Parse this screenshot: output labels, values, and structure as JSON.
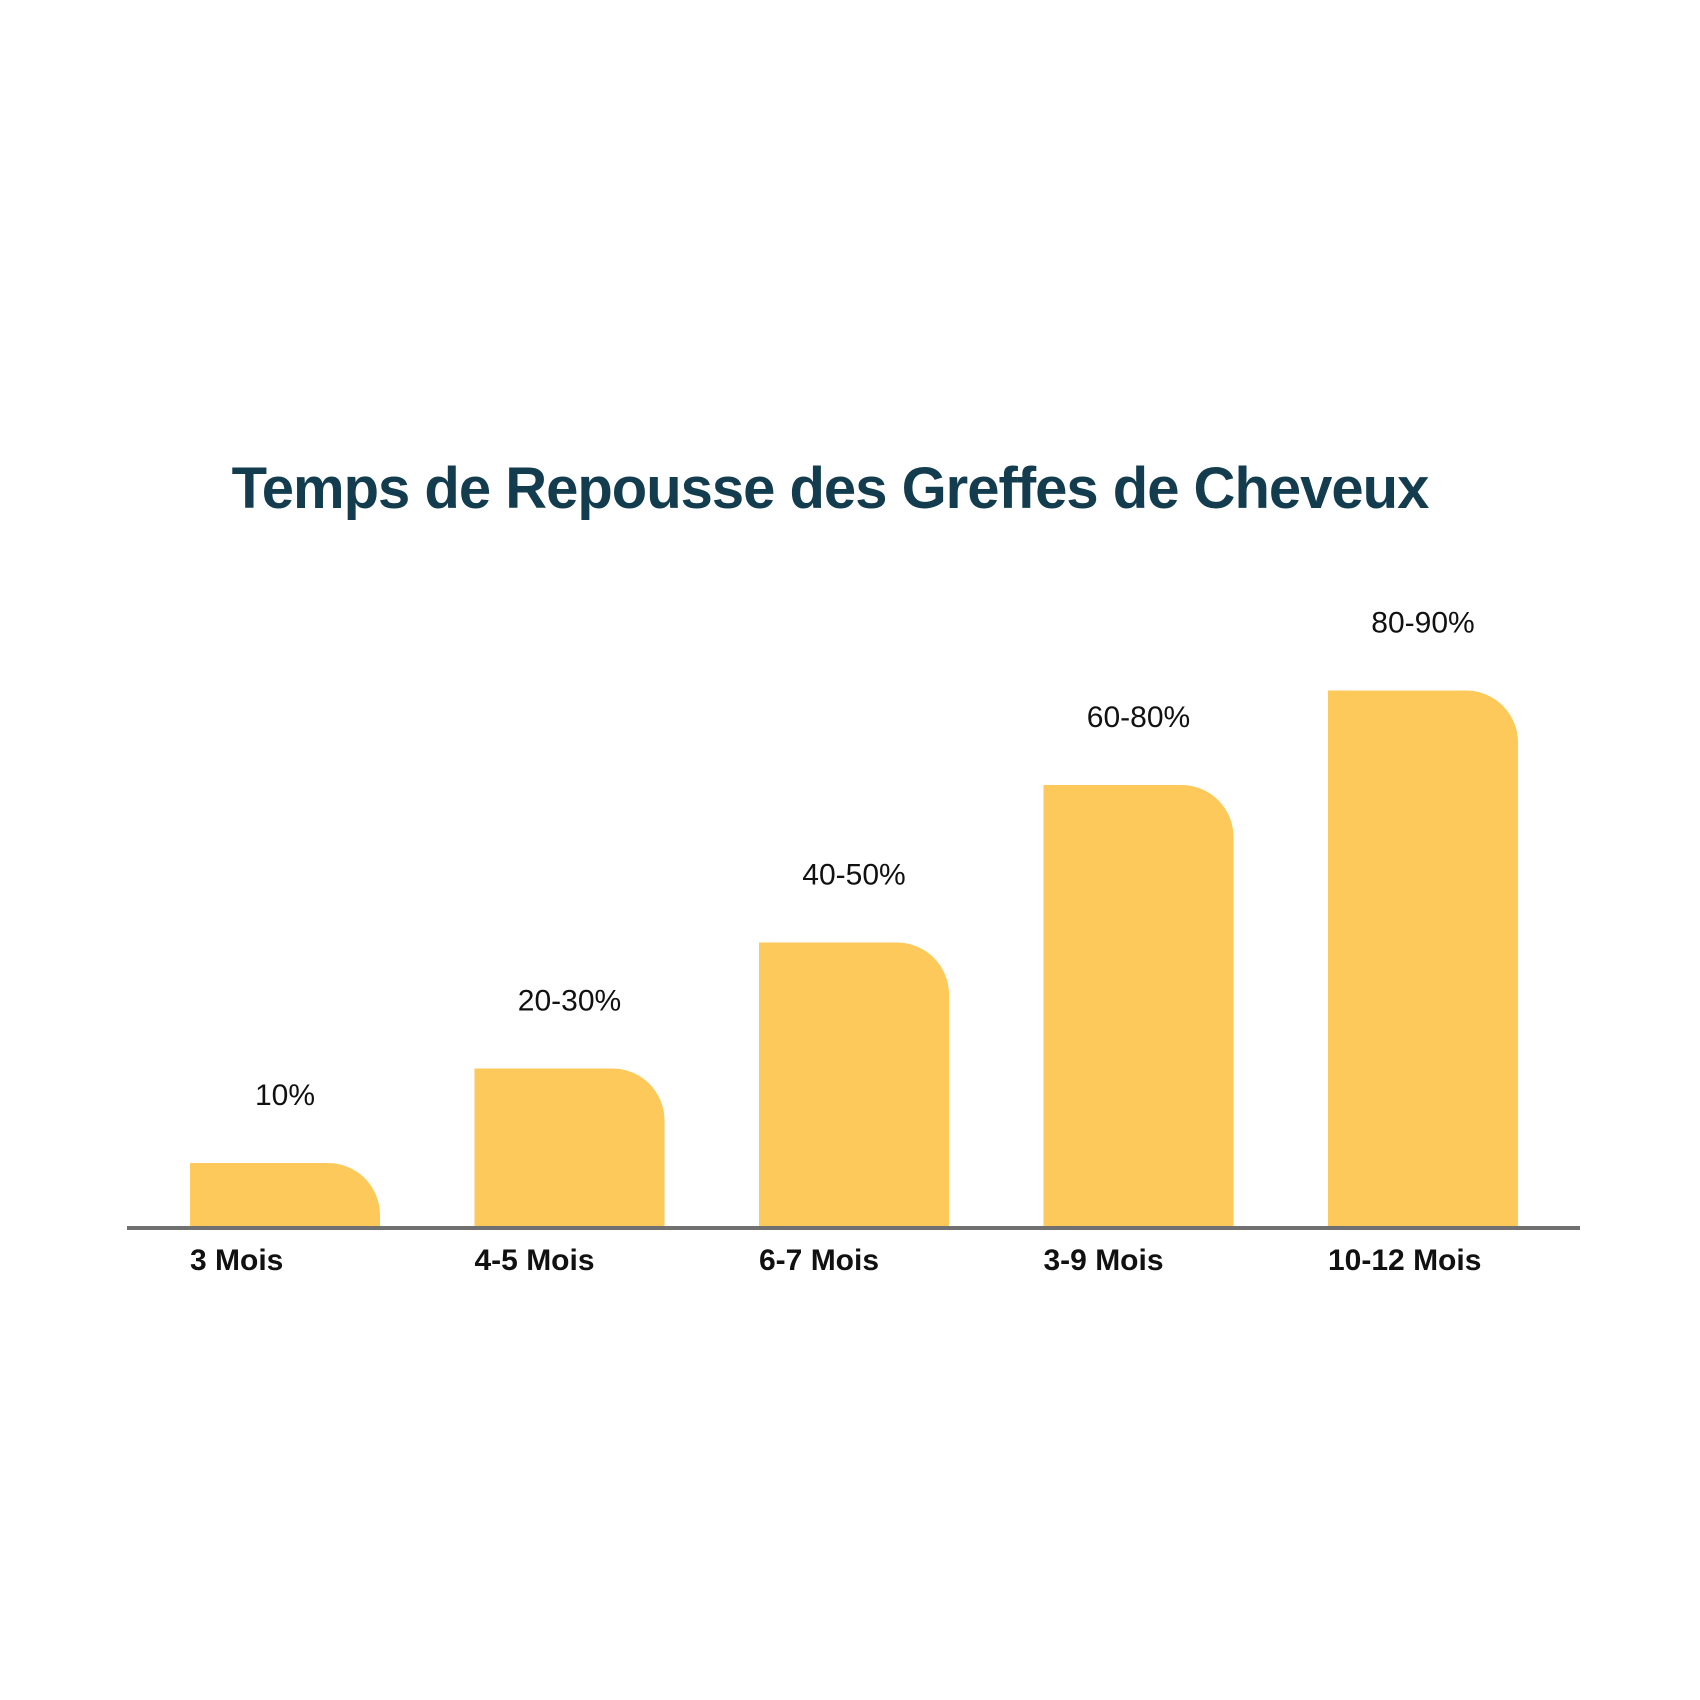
{
  "chart_data": {
    "type": "bar",
    "title": "Temps de Repousse des Greffes de Cheveux",
    "xlabel": "",
    "ylabel": "",
    "categories": [
      "3 Mois",
      "4-5 Mois",
      "6-7 Mois",
      "3-9 Mois",
      "10-12 Mois"
    ],
    "value_labels": [
      "10%",
      "20-30%",
      "40-50%",
      "60-80%",
      "80-90%"
    ],
    "values": [
      10,
      25,
      45,
      70,
      85
    ],
    "ylim": [
      0,
      100
    ],
    "grid": false,
    "legend": "none",
    "colors": {
      "bar": "#FDC95A",
      "baseline": "#707070",
      "title": "#133D4E",
      "text": "#111111"
    }
  }
}
